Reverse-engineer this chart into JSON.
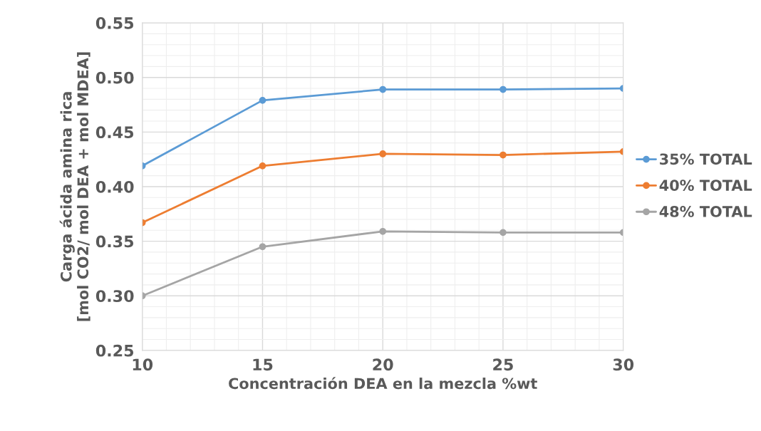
{
  "chart_data": {
    "type": "line",
    "xlabel": "Concentración DEA en la mezcla %wt",
    "ylabel": "Carga ácida amina rica\n[mol CO2/ mol DEA + mol MDEA]",
    "x": [
      10,
      15,
      20,
      25,
      30
    ],
    "series": [
      {
        "name": "35% TOTAL",
        "color": "#5b9bd5",
        "values": [
          0.419,
          0.479,
          0.489,
          0.489,
          0.49
        ]
      },
      {
        "name": "40% TOTAL",
        "color": "#ed7d31",
        "values": [
          0.367,
          0.419,
          0.43,
          0.429,
          0.432
        ]
      },
      {
        "name": "48% TOTAL",
        "color": "#a5a5a5",
        "values": [
          0.3,
          0.345,
          0.359,
          0.358,
          0.358
        ]
      }
    ],
    "xlim": [
      10,
      30
    ],
    "xticks": [
      10,
      15,
      20,
      25,
      30
    ],
    "ylim": [
      0.25,
      0.55
    ],
    "yticks": [
      {
        "value": 0.25,
        "label": "0.25"
      },
      {
        "value": 0.3,
        "label": "0.30"
      },
      {
        "value": 0.35,
        "label": "0.35"
      },
      {
        "value": 0.4,
        "label": "0.40"
      },
      {
        "value": 0.45,
        "label": "0.45"
      },
      {
        "value": 0.5,
        "label": "0.50"
      },
      {
        "value": 0.55,
        "label": "0.55"
      }
    ],
    "grid": true,
    "legend": "right",
    "marker": "circle",
    "line_style": "solid"
  }
}
